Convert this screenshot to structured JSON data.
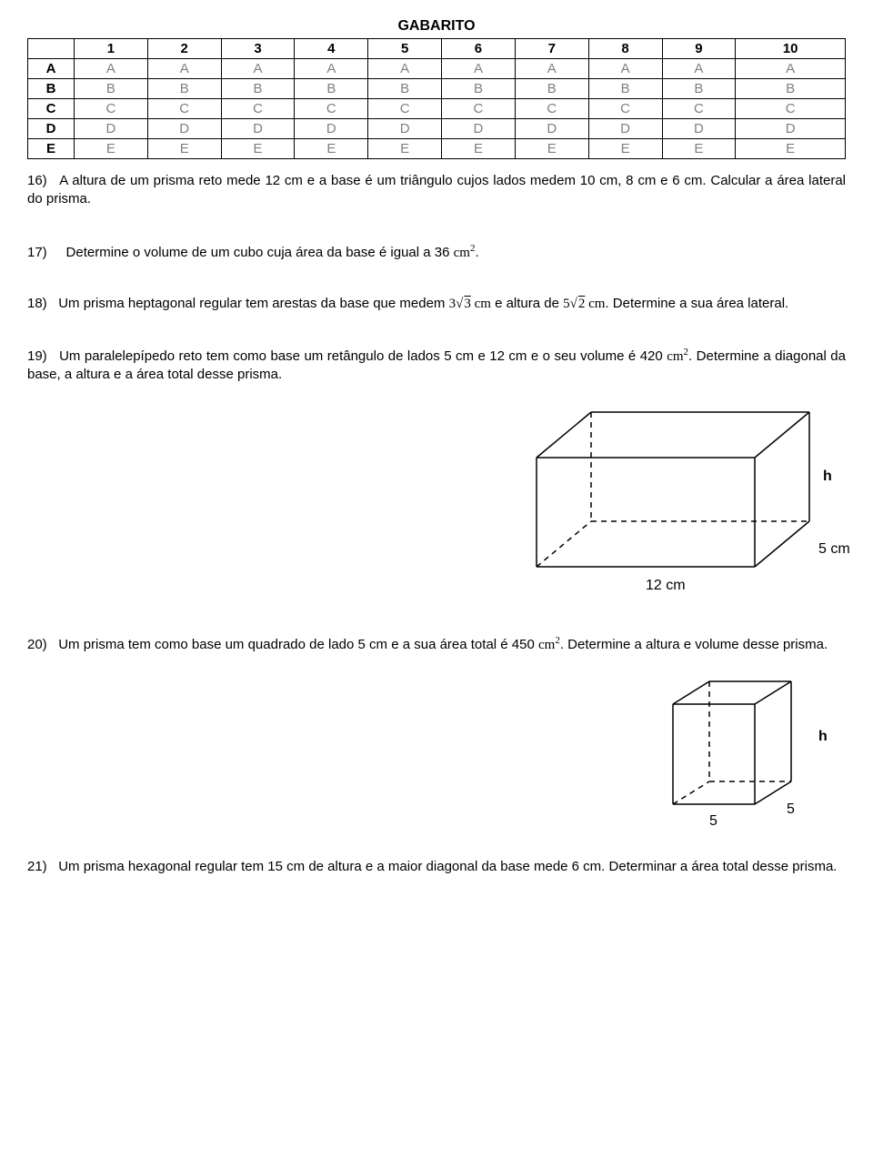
{
  "title": "GABARITO",
  "table": {
    "headers": [
      "",
      "1",
      "2",
      "3",
      "4",
      "5",
      "6",
      "7",
      "8",
      "9",
      "10"
    ],
    "rows": [
      {
        "label": "A",
        "cells": [
          "A",
          "A",
          "A",
          "A",
          "A",
          "A",
          "A",
          "A",
          "A",
          "A"
        ]
      },
      {
        "label": "B",
        "cells": [
          "B",
          "B",
          "B",
          "B",
          "B",
          "B",
          "B",
          "B",
          "B",
          "B"
        ]
      },
      {
        "label": "C",
        "cells": [
          "C",
          "C",
          "C",
          "C",
          "C",
          "C",
          "C",
          "C",
          "C",
          "C"
        ]
      },
      {
        "label": "D",
        "cells": [
          "D",
          "D",
          "D",
          "D",
          "D",
          "D",
          "D",
          "D",
          "D",
          "D"
        ]
      },
      {
        "label": "E",
        "cells": [
          "E",
          "E",
          "E",
          "E",
          "E",
          "E",
          "E",
          "E",
          "E",
          "E"
        ]
      }
    ],
    "header_color": "#000000",
    "cell_color": "#808080",
    "border_color": "#000000"
  },
  "q16": {
    "num": "16)",
    "text_a": "A altura de um prisma reto mede 12 cm e a base é um triângulo cujos lados  medem 10 cm, 8 cm e 6 cm. Calcular a área lateral do prisma."
  },
  "q17": {
    "num": "17)",
    "text_a": "Determine o volume de um cubo cuja área da base é igual a 36 ",
    "math_a": "cm",
    "sup_a": "2",
    "text_b": "."
  },
  "q18": {
    "num": "18)",
    "text_a": "Um prisma heptagonal regular tem arestas da base que medem ",
    "m1_coef": "3",
    "m1_rad": "3",
    "m1_unit": " cm",
    "text_b": " e altura de ",
    "m2_coef": "5",
    "m2_rad": "2",
    "m2_unit": " cm",
    "text_c": ". Determine a sua área lateral."
  },
  "q19": {
    "num": "19)",
    "text_a": "Um paralelepípedo reto tem como base um retângulo de lados 5 cm e 12 cm e o seu volume é  420 ",
    "math_a": "cm",
    "sup_a": "2",
    "text_b": ". Determine a  diagonal da base, a altura e a área total desse prisma.",
    "fig": {
      "label_h": "h",
      "label_12": "12 cm",
      "label_5": "5 cm",
      "stroke": "#000000",
      "stroke_width": 1.5,
      "dash": "6,5",
      "font": "16px Arial"
    }
  },
  "q20": {
    "num": "20)",
    "text_a": "Um prisma tem como base um quadrado de lado 5 cm e a sua área total é  450 ",
    "math_a": "cm",
    "sup_a": "2",
    "text_b": ". Determine a altura e volume desse prisma.",
    "fig": {
      "label_h": "h",
      "label_5a": "5",
      "label_5b": "5",
      "stroke": "#000000",
      "stroke_width": 1.5,
      "dash": "6,5",
      "font": "16px Arial"
    }
  },
  "q21": {
    "num": "21)",
    "text_a": "Um prisma hexagonal regular tem 15 cm de altura e a maior diagonal da base mede 6 cm.  Determinar a área total desse prisma."
  }
}
